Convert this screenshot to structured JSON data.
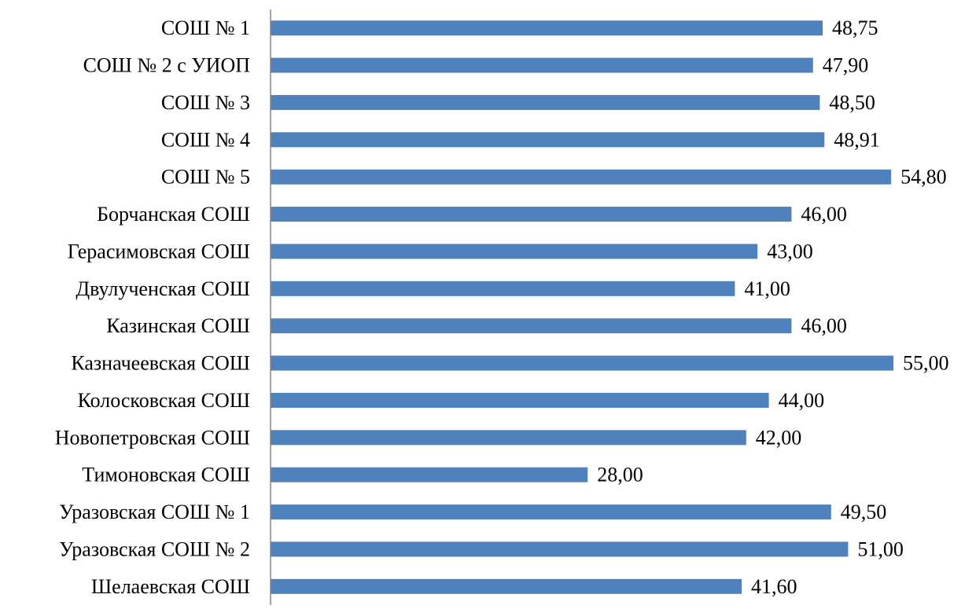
{
  "chart_data": {
    "type": "bar",
    "orientation": "horizontal",
    "categories": [
      "СОШ № 1",
      "СОШ № 2 с УИОП",
      "СОШ № 3",
      "СОШ № 4",
      "СОШ № 5",
      "Борчанская СОШ",
      "Герасимовская СОШ",
      "Двулученская СОШ",
      "Казинская СОШ",
      "Казначеевская СОШ",
      "Колосковская СОШ",
      "Новопетровская СОШ",
      "Тимоновская СОШ",
      "Уразовская СОШ № 1",
      "Уразовская СОШ № 2",
      "Шелаевская СОШ"
    ],
    "values": [
      48.75,
      47.9,
      48.5,
      48.91,
      54.8,
      46.0,
      43.0,
      41.0,
      46.0,
      55.0,
      44.0,
      42.0,
      28.0,
      49.5,
      51.0,
      41.6
    ],
    "value_labels": [
      "48,75",
      "47,90",
      "48,50",
      "48,91",
      "54,80",
      "46,00",
      "43,00",
      "41,00",
      "46,00",
      "55,00",
      "44,00",
      "42,00",
      "28,00",
      "49,50",
      "51,00",
      "41,60"
    ],
    "xlim": [
      0,
      55
    ],
    "title": "",
    "xlabel": "",
    "ylabel": "",
    "grid": false,
    "legend": "none",
    "bar_color": "#4F81BD",
    "axis_color": "#868686"
  }
}
